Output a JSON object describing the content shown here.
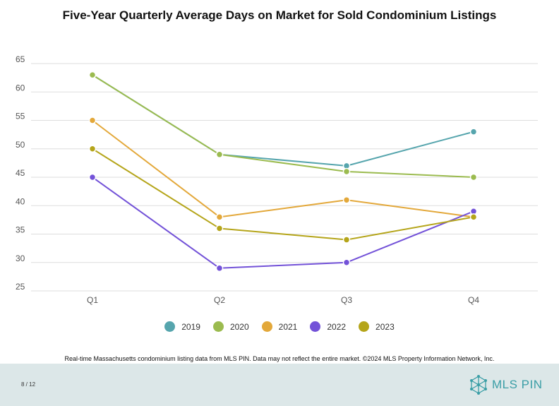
{
  "chart_data": {
    "type": "line",
    "title": "Five-Year Quarterly Average Days on Market for Sold Condominium Listings",
    "categories": [
      "Q1",
      "Q2",
      "Q3",
      "Q4"
    ],
    "ylim": [
      25,
      65
    ],
    "yticks": [
      25,
      30,
      35,
      40,
      45,
      50,
      55,
      60,
      65
    ],
    "grid": true,
    "legend_position": "bottom",
    "series": [
      {
        "name": "2019",
        "color": "#56a5ad",
        "values": [
          63,
          49,
          47,
          53
        ]
      },
      {
        "name": "2020",
        "color": "#9bbb4f",
        "values": [
          63,
          49,
          46,
          45
        ]
      },
      {
        "name": "2021",
        "color": "#e3a83a",
        "values": [
          55,
          38,
          41,
          38
        ]
      },
      {
        "name": "2022",
        "color": "#7352d8",
        "values": [
          45,
          29,
          30,
          39
        ]
      },
      {
        "name": "2023",
        "color": "#b5a51a",
        "values": [
          50,
          36,
          34,
          38
        ]
      }
    ]
  },
  "footnote": "Real-time Massachusetts condominium listing data from MLS PIN. Data may not reflect the entire market. ©2024 MLS Property Information Network, Inc.",
  "footer": {
    "page": "8 / 12",
    "logo_text": "MLS PIN",
    "logo_color": "#3a9ea6",
    "logo_accent": "#f0a830",
    "background": "#dce7e8"
  }
}
